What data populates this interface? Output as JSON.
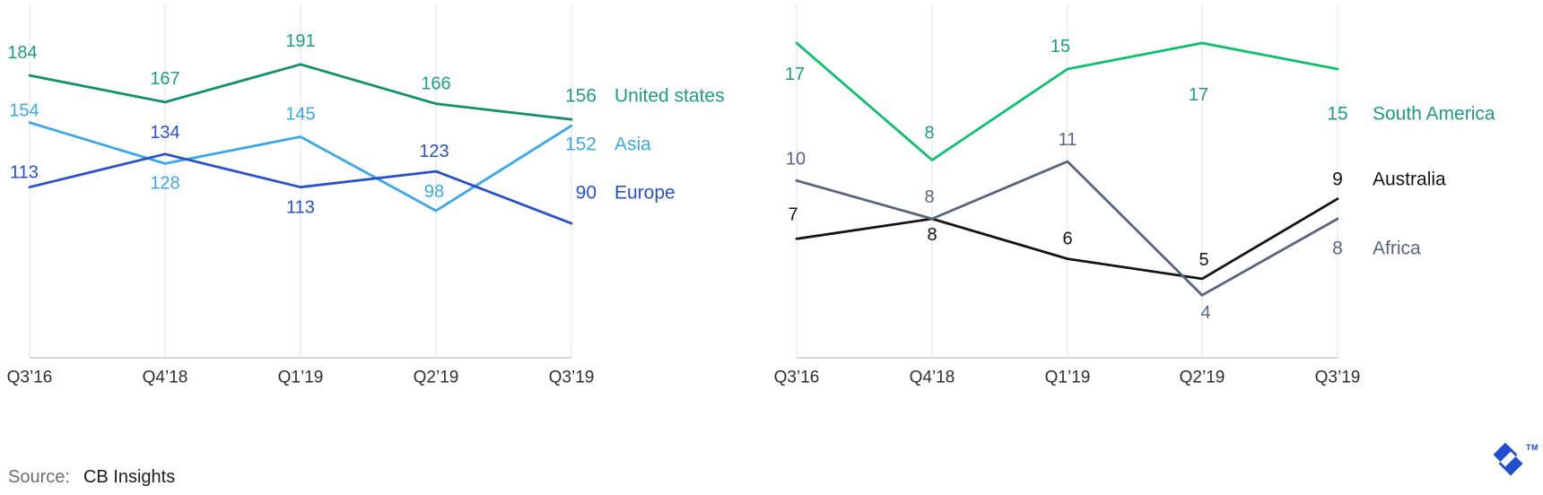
{
  "chart_data": [
    {
      "id": "international",
      "type": "line",
      "title": "",
      "xlabel": "",
      "ylabel": "",
      "ylim": [
        80,
        200
      ],
      "grid": "vertical-only",
      "legend_position": "right",
      "categories": [
        "Q3’16",
        "Q4’18",
        "Q1’19",
        "Q2’19",
        "Q3’19"
      ],
      "series": [
        {
          "name": "United states",
          "values": [
            184,
            167,
            191,
            166,
            156
          ],
          "line_color": "#0f9169",
          "label_color": "#219c7f"
        },
        {
          "name": "Asia",
          "values": [
            154,
            128,
            145,
            98,
            152
          ],
          "line_color": "#3ba8e9",
          "label_color": "#3ba8e9"
        },
        {
          "name": "Europe",
          "values": [
            113,
            134,
            113,
            123,
            90
          ],
          "line_color": "#2a51cd",
          "label_color": "#2a51cd"
        }
      ]
    },
    {
      "id": "emerging",
      "type": "line",
      "title": "",
      "xlabel": "",
      "ylabel": "",
      "ylim": [
        0,
        20
      ],
      "grid": "vertical-only",
      "legend_position": "right",
      "categories": [
        "Q3’16",
        "Q4’18",
        "Q1’19",
        "Q2’19",
        "Q3’19"
      ],
      "series": [
        {
          "name": "South America",
          "values": [
            17,
            8,
            15,
            17,
            15
          ],
          "line_color": "#0cc16d",
          "label_color": "#1d9c80"
        },
        {
          "name": "Australia",
          "values": [
            7,
            8,
            6,
            5,
            9
          ],
          "line_color": "#141414",
          "label_color": "#141414"
        },
        {
          "name": "Africa",
          "values": [
            10,
            8,
            11,
            4,
            8
          ],
          "line_color": "#58657f",
          "label_color": "#58657f"
        }
      ]
    }
  ],
  "axis": {
    "tick_color": "#2e2e2e",
    "grid_color": "#ececec",
    "baseline_color": "#d8d8d8"
  },
  "footer": {
    "source_label": "Source:",
    "source_value": "CB Insights",
    "trademark": "TM",
    "logo_color": "#204ECF"
  }
}
